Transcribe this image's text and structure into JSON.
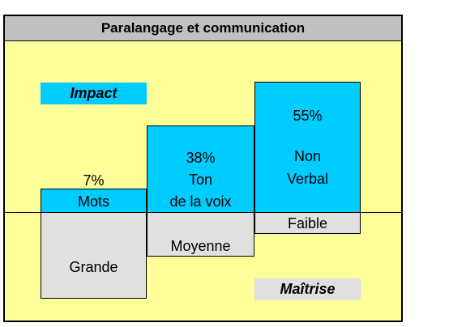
{
  "title": "Paralangage et communication",
  "impact_label": "Impact",
  "maitrise_label": "Maîtrise",
  "columns": [
    {
      "impact_percent": "7%",
      "impact_value": 7,
      "name_line1": "Mots",
      "name_line2": "",
      "maitrise": "Grande"
    },
    {
      "impact_percent": "38%",
      "impact_value": 38,
      "name_line1": "Ton",
      "name_line2": "de la voix",
      "maitrise": "Moyenne"
    },
    {
      "impact_percent": "55%",
      "impact_value": 55,
      "name_line1": "Non",
      "name_line2": "Verbal",
      "maitrise": "Faible"
    }
  ],
  "colors": {
    "background": "#ffff99",
    "impact": "#00ccff",
    "maitrise": "#e0e0e0",
    "title_bar": "#c0c0c0"
  }
}
